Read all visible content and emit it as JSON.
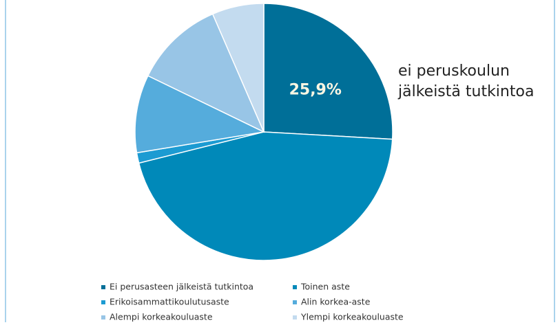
{
  "chart_data": {
    "type": "pie",
    "categories": [
      "Ei perusasteen jälkeistä tutkintoa",
      "Toinen aste",
      "Erikoisammattikoulutusaste",
      "Alin korkea-aste",
      "Alempi korkeakouluaste",
      "Ylempi korkeakouluaste"
    ],
    "values": [
      25.9,
      45.2,
      1.3,
      9.8,
      11.3,
      6.5
    ],
    "value_labels": [
      "25,9%",
      null,
      null,
      null,
      null,
      null
    ],
    "colors": [
      "#006f98",
      "#0089b9",
      "#1c9bd2",
      "#55acdc",
      "#98c5e6",
      "#c3dbef"
    ],
    "annotation": [
      "ei peruskoulun",
      "jälkeistä tutkintoa"
    ]
  }
}
